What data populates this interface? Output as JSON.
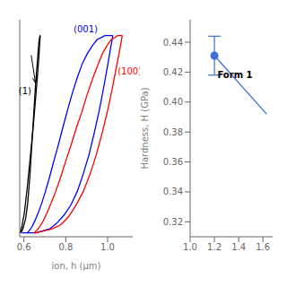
{
  "chart_data": [
    {
      "type": "line",
      "xlabel": "ion, h (μm)",
      "xlim": [
        0.58,
        1.12
      ],
      "xticks": [
        0.6,
        0.8,
        {
          "value": 1.0,
          "label": "1.0"
        }
      ],
      "ylim": [
        -0.02,
        1.08
      ],
      "tick_labels": "x",
      "series": [
        {
          "color": "black",
          "x": [
            0.585,
            0.595,
            0.608,
            0.618,
            0.628,
            0.638,
            0.648,
            0.655,
            0.663,
            0.668,
            0.672,
            0.675,
            0.677,
            0.678
          ],
          "values": [
            0.0,
            0.02,
            0.07,
            0.15,
            0.28,
            0.45,
            0.62,
            0.74,
            0.85,
            0.92,
            0.97,
            0.99,
            1.0,
            1.0
          ]
        },
        {
          "color": "black",
          "x": [
            0.678,
            0.676,
            0.672,
            0.665,
            0.655,
            0.643,
            0.63,
            0.616,
            0.602,
            0.59,
            0.582
          ],
          "values": [
            1.0,
            0.97,
            0.9,
            0.8,
            0.67,
            0.52,
            0.38,
            0.23,
            0.1,
            0.03,
            0.0
          ]
        },
        {
          "color": "blue",
          "x": [
            0.615,
            0.625,
            0.638,
            0.652,
            0.668,
            0.685,
            0.703,
            0.722,
            0.742,
            0.763,
            0.785,
            0.808,
            0.832,
            0.856,
            0.88,
            0.904,
            0.928,
            0.95,
            0.97,
            0.987,
            1.0,
            1.01,
            1.018,
            1.022,
            1.025
          ],
          "values": [
            0.0,
            0.01,
            0.03,
            0.06,
            0.1,
            0.15,
            0.21,
            0.28,
            0.36,
            0.44,
            0.53,
            0.62,
            0.71,
            0.79,
            0.86,
            0.91,
            0.95,
            0.98,
            0.99,
            1.0,
            1.0,
            1.0,
            1.0,
            1.0,
            1.0
          ]
        },
        {
          "color": "blue",
          "x": [
            1.025,
            1.02,
            1.01,
            0.997,
            0.98,
            0.96,
            0.937,
            0.912,
            0.884,
            0.855,
            0.824,
            0.792,
            0.758,
            0.724,
            0.69,
            0.656,
            0.622,
            0.59
          ],
          "values": [
            1.0,
            0.97,
            0.91,
            0.83,
            0.73,
            0.62,
            0.51,
            0.4,
            0.3,
            0.21,
            0.14,
            0.09,
            0.05,
            0.02,
            0.01,
            0.0,
            0.0,
            0.0
          ]
        },
        {
          "color": "red",
          "x": [
            0.648,
            0.66,
            0.675,
            0.692,
            0.71,
            0.73,
            0.752,
            0.775,
            0.799,
            0.824,
            0.85,
            0.876,
            0.902,
            0.928,
            0.953,
            0.976,
            0.998,
            1.018,
            1.035,
            1.048,
            1.058,
            1.065,
            1.068,
            1.07
          ],
          "values": [
            0.0,
            0.01,
            0.03,
            0.06,
            0.1,
            0.15,
            0.21,
            0.28,
            0.36,
            0.44,
            0.53,
            0.61,
            0.7,
            0.78,
            0.85,
            0.91,
            0.95,
            0.98,
            0.99,
            1.0,
            1.0,
            1.0,
            1.0,
            1.0
          ]
        },
        {
          "color": "red",
          "x": [
            1.07,
            1.065,
            1.055,
            1.04,
            1.022,
            1.0,
            0.975,
            0.947,
            0.917,
            0.884,
            0.849,
            0.812,
            0.775,
            0.736,
            0.697,
            0.658,
            0.648
          ],
          "values": [
            1.0,
            0.97,
            0.91,
            0.83,
            0.73,
            0.62,
            0.51,
            0.4,
            0.3,
            0.21,
            0.14,
            0.08,
            0.04,
            0.02,
            0.01,
            0.0,
            0.0
          ]
        }
      ],
      "annotations": [
        {
          "text": "(001)",
          "color": "blue",
          "x": 0.895,
          "y": 1.015
        },
        {
          "text": "(100)",
          "color": "red",
          "x": 1.048,
          "y": 0.82
        },
        {
          "text": "(1)",
          "color": "black",
          "x": 0.575,
          "y": 0.72
        }
      ],
      "arrows": [
        {
          "x": [
            0.635,
            0.655
          ],
          "y": [
            0.9,
            0.76
          ],
          "color": "black"
        }
      ]
    },
    {
      "type": "line",
      "ylabel": "Hardness, H (GPa)",
      "xlim": [
        1.0,
        1.68
      ],
      "xticks": [
        {
          "value": 1.0,
          "label": "1.0"
        },
        1.2,
        1.4,
        1.6
      ],
      "ylim": [
        0.31,
        0.455
      ],
      "yticks": [
        0.32,
        0.34,
        0.36,
        0.38,
        {
          "value": 0.4,
          "label": "0.40"
        },
        0.42,
        0.44
      ],
      "series": [
        {
          "type": "line",
          "color": "#3b6fd4",
          "x": [
            1.2,
            1.63
          ],
          "values": [
            0.431,
            0.392
          ]
        },
        {
          "type": "scatter",
          "marker": "circle",
          "color": "#3b6fd4",
          "x": [
            1.2
          ],
          "values": [
            0.431
          ],
          "error_lower": [
            0.013
          ],
          "error_upper": [
            0.013
          ]
        }
      ],
      "annotations": [
        {
          "text": "Form 1",
          "color": "black",
          "x": 1.225,
          "y": 0.421
        }
      ]
    }
  ]
}
